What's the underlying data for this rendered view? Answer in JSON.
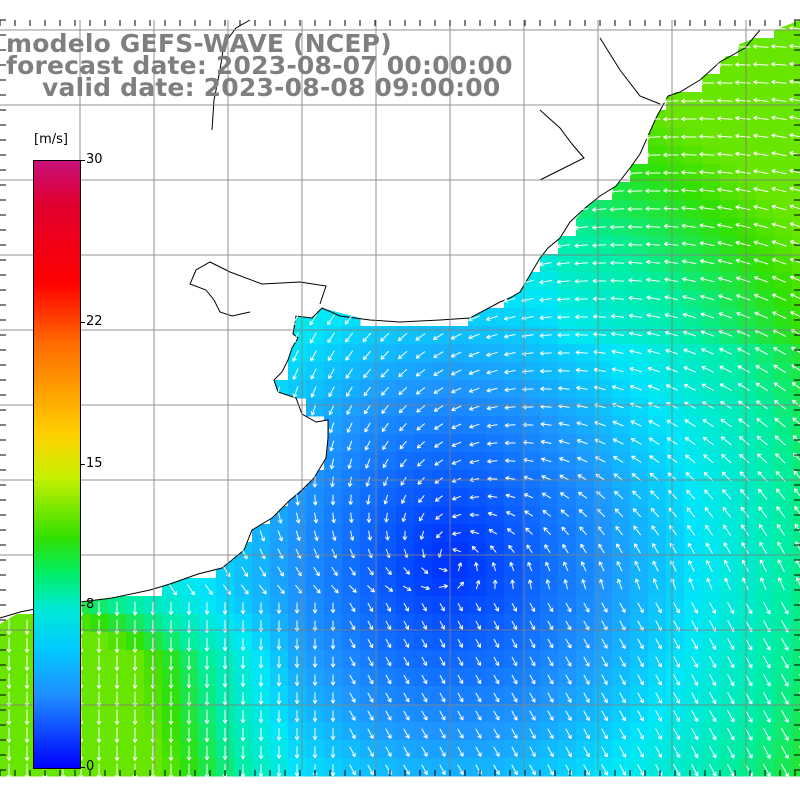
{
  "header": {
    "model_line": "modelo GEFS-WAVE (NCEP)",
    "forecast_line": "forecast date: 2023-08-07 00:00:00",
    "valid_line": "valid date: 2023-08-08 09:00:00"
  },
  "colorbar": {
    "unit": "[m/s]",
    "ticks": [
      "30",
      "22",
      "15",
      "8",
      "0"
    ],
    "tick_values": [
      30,
      22,
      15,
      8,
      0
    ],
    "range": [
      0,
      30
    ],
    "colors": {
      "max": "#c8107a",
      "red": "#ff0000",
      "orange": "#ff6a00",
      "yellow": "#ffd000",
      "green": "#33e000",
      "cyan": "#00e8d8",
      "lightblue": "#1e8fff",
      "min": "#0000ff"
    }
  },
  "map": {
    "variable": "wind speed",
    "land_color": "#ffffff",
    "coastline_color": "#000000",
    "grid_color": "#808080",
    "arrow_color": "#ffffff"
  }
}
